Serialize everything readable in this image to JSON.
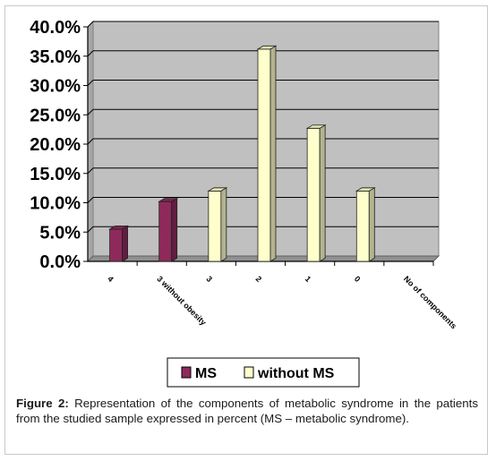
{
  "caption": {
    "label": "Figure 2:",
    "text": "Representation of the components of metabolic syndrome in the patients from the studied sample expressed in percent (MS – metabolic syndrome)."
  },
  "colors": {
    "ms": "#8e2a5b",
    "without_ms": "#ffffcc",
    "plot_bg": "#c0c0c0"
  },
  "chart_data": {
    "type": "bar",
    "title": "",
    "xlabel": "",
    "ylabel": "",
    "categories": [
      "4",
      "3 without obesity",
      "3",
      "2",
      "1",
      "0",
      "No of components"
    ],
    "ylim": [
      0,
      40
    ],
    "yticks": [
      "0.0%",
      "5.0%",
      "10.0%",
      "15.0%",
      "20.0%",
      "25.0%",
      "30.0%",
      "35.0%",
      "40.0%"
    ],
    "grid": true,
    "legend_position": "bottom",
    "series": [
      {
        "name": "MS",
        "values": [
          5.5,
          10.2,
          null,
          null,
          null,
          null,
          null
        ]
      },
      {
        "name": "without MS",
        "values": [
          null,
          null,
          12.0,
          36.2,
          22.7,
          12.0,
          null
        ]
      }
    ]
  }
}
